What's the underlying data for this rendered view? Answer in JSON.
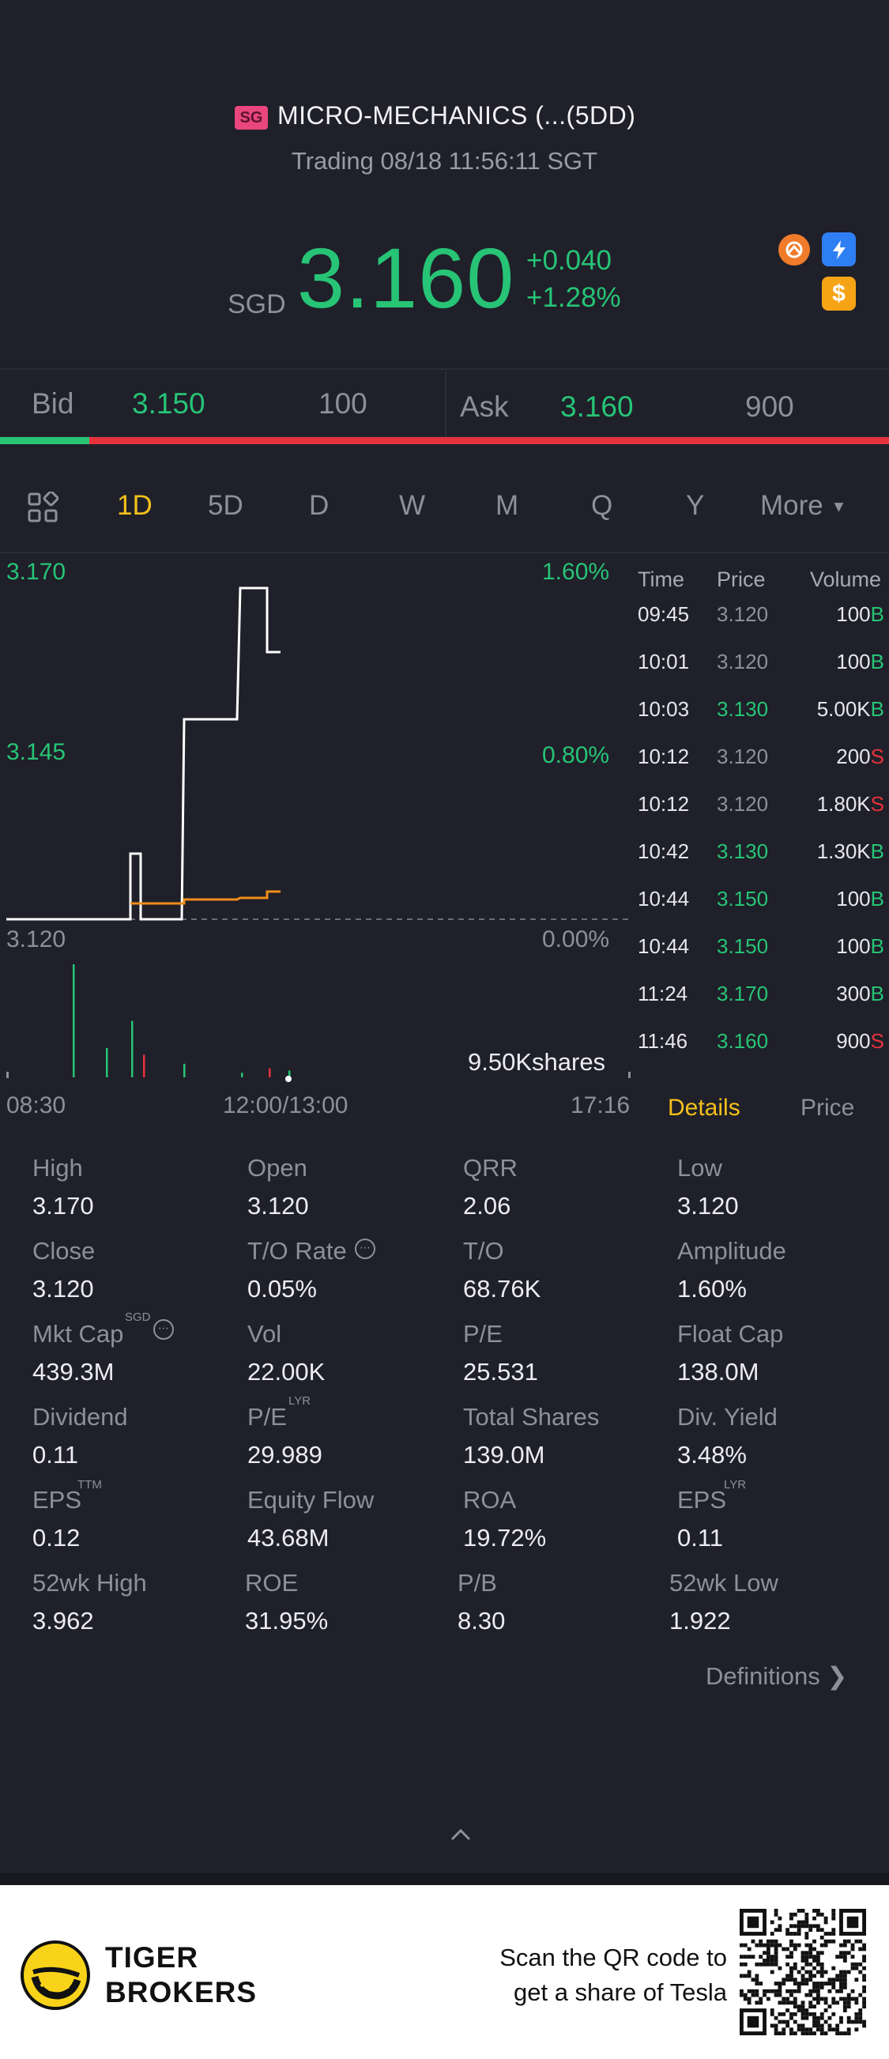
{
  "header": {
    "market_badge": "SG",
    "title": "MICRO-MECHANICS (...(5DD)",
    "status": "Trading 08/18 11:56:11 SGT",
    "currency": "SGD",
    "price": "3.160",
    "change": "+0.040",
    "change_pct": "+1.28%",
    "icons": [
      "orange-badge-icon",
      "lightning-icon",
      "dollar-icon"
    ]
  },
  "quote": {
    "bid_label": "Bid",
    "bid_price": "3.150",
    "bid_size": "100",
    "ask_label": "Ask",
    "ask_price": "3.160",
    "ask_size": "900",
    "bid_ratio": 0.1
  },
  "period_tabs": [
    "1D",
    "5D",
    "D",
    "W",
    "M",
    "Q",
    "Y",
    "More"
  ],
  "active_period": "1D",
  "chart": {
    "y_top": "3.170",
    "y_mid": "3.145",
    "y_bottom": "3.120",
    "pct_top": "1.60%",
    "pct_mid": "0.80%",
    "pct_bottom": "0.00%",
    "volume_label": "9.50Kshares",
    "x_start": "08:30",
    "x_mid": "12:00/13:00",
    "x_end": "17:16"
  },
  "chart_data": {
    "type": "line",
    "ylim": [
      3.12,
      3.17
    ],
    "series": [
      {
        "values": [
          3.12,
          3.12,
          3.12,
          3.12,
          3.12,
          3.13,
          3.13,
          3.12,
          3.12,
          3.12,
          3.15,
          3.15,
          3.15,
          3.15,
          3.17,
          3.17,
          3.17,
          3.16
        ]
      },
      {
        "values": [
          3.12,
          3.12,
          3.12,
          3.12,
          3.12,
          3.1225,
          3.1225,
          3.1225,
          3.1225,
          3.123,
          3.123,
          3.123,
          3.123,
          3.1235,
          3.1235,
          3.124,
          3.125,
          3.125
        ]
      }
    ],
    "volumes": [
      {
        "v": 5.0,
        "dir": "buy"
      },
      {
        "v": 1.3,
        "dir": "buy"
      },
      {
        "v": 2.5,
        "dir": "buy"
      },
      {
        "v": 1.0,
        "dir": "sell"
      },
      {
        "v": 0.6,
        "dir": "buy"
      },
      {
        "v": 0.2,
        "dir": "buy"
      },
      {
        "v": 0.4,
        "dir": "sell"
      },
      {
        "v": 0.3,
        "dir": "buy"
      }
    ]
  },
  "trades": {
    "headers": [
      "Time",
      "Price",
      "Volume"
    ],
    "rows": [
      {
        "time": "09:45",
        "price": "3.120",
        "vol": "100",
        "side": "B",
        "dir": "flat"
      },
      {
        "time": "10:01",
        "price": "3.120",
        "vol": "100",
        "side": "B",
        "dir": "flat"
      },
      {
        "time": "10:03",
        "price": "3.130",
        "vol": "5.00K",
        "side": "B",
        "dir": "up"
      },
      {
        "time": "10:12",
        "price": "3.120",
        "vol": "200",
        "side": "S",
        "dir": "flat"
      },
      {
        "time": "10:12",
        "price": "3.120",
        "vol": "1.80K",
        "side": "S",
        "dir": "flat"
      },
      {
        "time": "10:42",
        "price": "3.130",
        "vol": "1.30K",
        "side": "B",
        "dir": "up"
      },
      {
        "time": "10:44",
        "price": "3.150",
        "vol": "100",
        "side": "B",
        "dir": "up"
      },
      {
        "time": "10:44",
        "price": "3.150",
        "vol": "100",
        "side": "B",
        "dir": "up"
      },
      {
        "time": "11:24",
        "price": "3.170",
        "vol": "300",
        "side": "B",
        "dir": "up"
      },
      {
        "time": "11:46",
        "price": "3.160",
        "vol": "900",
        "side": "S",
        "dir": "up"
      }
    ]
  },
  "detail_tabs": {
    "details": "Details",
    "price": "Price"
  },
  "stats": [
    [
      {
        "l": "High",
        "v": "3.170"
      },
      {
        "l": "Open",
        "v": "3.120"
      },
      {
        "l": "QRR",
        "v": "2.06"
      },
      {
        "l": "Low",
        "v": "3.120"
      }
    ],
    [
      {
        "l": "Close",
        "v": "3.120"
      },
      {
        "l": "T/O Rate",
        "v": "0.05%"
      },
      {
        "l": "T/O",
        "v": "68.76K"
      },
      {
        "l": "Amplitude",
        "v": "1.60%"
      }
    ],
    [
      {
        "l": "Mkt Cap",
        "v": "439.3M"
      },
      {
        "l": "Vol",
        "v": "22.00K"
      },
      {
        "l": "P/E",
        "v": "25.531"
      },
      {
        "l": "Float Cap",
        "v": "138.0M"
      }
    ],
    [
      {
        "l": "Dividend",
        "v": "0.11"
      },
      {
        "l": "P/E",
        "v": "29.989"
      },
      {
        "l": "Total Shares",
        "v": "139.0M"
      },
      {
        "l": "Div. Yield",
        "v": "3.48%"
      }
    ],
    [
      {
        "l": "EPS",
        "v": "0.12"
      },
      {
        "l": "Equity Flow",
        "v": "43.68M"
      },
      {
        "l": "ROA",
        "v": "19.72%"
      },
      {
        "l": "EPS",
        "v": "0.11"
      }
    ],
    [
      {
        "l": "52wk High",
        "v": "3.962"
      },
      {
        "l": "ROE",
        "v": "31.95%"
      },
      {
        "l": "P/B",
        "v": "8.30"
      },
      {
        "l": "52wk Low",
        "v": "1.922"
      }
    ]
  ],
  "superscripts": {
    "sgd": "SGD",
    "lyr": "LYR",
    "ttm": "TTM"
  },
  "definitions": "Definitions",
  "footer": {
    "brand_line1": "TIGER",
    "brand_line2": "BROKERS",
    "scan_line1": "Scan the QR code to",
    "scan_line2": "get a share of Tesla"
  }
}
